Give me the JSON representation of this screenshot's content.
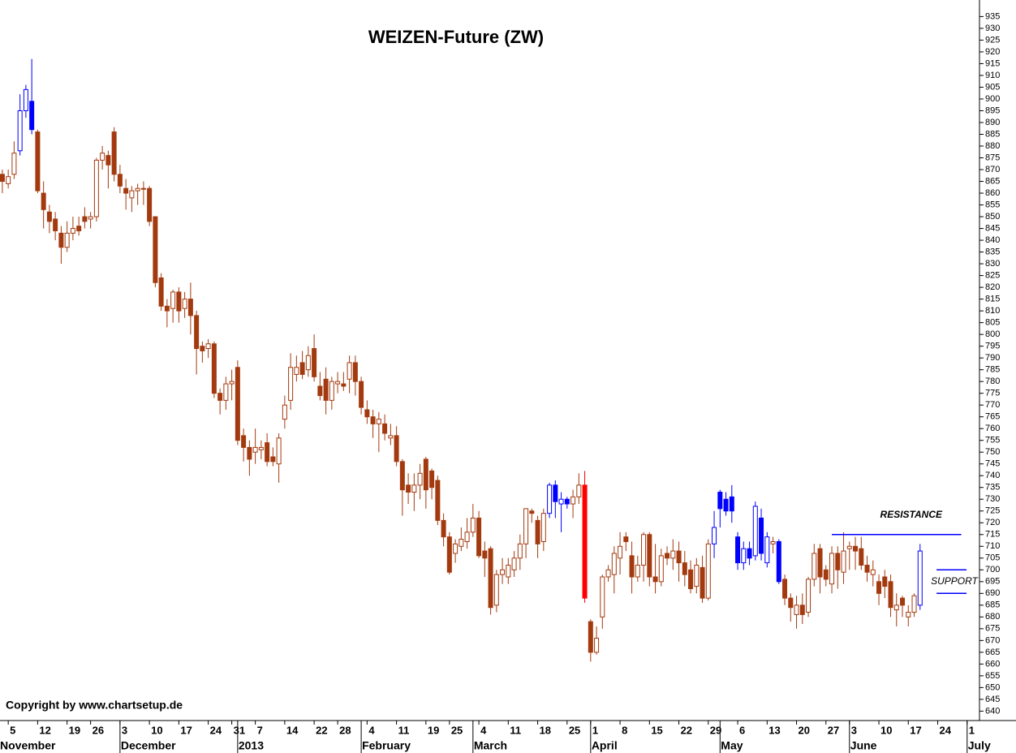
{
  "chart_data": {
    "type": "candlestick",
    "title": "WEIZEN-Future  (ZW)",
    "copyright": "Copyright by www.chartsetup.de",
    "open": [
      867,
      868,
      864,
      868,
      878,
      895,
      899,
      886,
      860,
      852,
      849,
      843,
      837,
      843,
      846,
      850,
      849,
      850,
      874,
      876,
      886,
      868,
      862,
      858,
      861,
      862,
      862,
      850,
      824,
      812,
      811,
      818,
      811,
      815,
      808,
      795,
      794,
      796,
      775,
      772,
      779,
      786,
      757,
      752,
      750,
      751,
      754,
      748,
      745,
      764,
      772,
      783,
      788,
      785,
      794,
      778,
      781,
      772,
      779,
      779,
      781,
      788,
      780,
      768,
      765,
      762,
      762,
      756,
      757,
      746,
      736,
      733,
      736,
      747,
      742,
      738,
      721,
      714,
      707,
      710,
      712,
      716,
      722,
      708,
      709,
      685,
      698,
      697,
      700,
      705,
      711,
      725,
      721,
      712,
      724,
      736,
      728,
      730,
      728,
      731,
      736,
      678,
      665,
      680,
      697,
      698,
      705,
      714,
      706,
      697,
      702,
      715,
      697,
      695,
      707,
      705,
      708,
      703,
      700,
      693,
      701,
      688,
      711,
      733,
      730,
      731,
      714,
      703,
      709,
      706,
      722,
      703,
      711,
      712,
      696,
      688,
      681,
      685,
      682,
      696,
      709,
      700,
      694,
      707,
      699,
      709,
      710,
      709,
      702,
      698,
      695,
      697,
      695,
      683,
      688,
      680,
      682,
      685
    ],
    "high": [
      869,
      870,
      870,
      882,
      902,
      906,
      917,
      887,
      865,
      855,
      852,
      846,
      848,
      850,
      850,
      854,
      852,
      875,
      880,
      878,
      888,
      872,
      866,
      863,
      864,
      865,
      863,
      850,
      826,
      815,
      819,
      820,
      818,
      822,
      810,
      797,
      798,
      797,
      777,
      782,
      785,
      789,
      760,
      755,
      760,
      755,
      758,
      752,
      758,
      774,
      792,
      791,
      793,
      795,
      800,
      784,
      786,
      782,
      784,
      784,
      791,
      791,
      782,
      772,
      768,
      767,
      766,
      762,
      761,
      747,
      741,
      741,
      745,
      748,
      743,
      740,
      724,
      716,
      713,
      718,
      722,
      728,
      725,
      712,
      710,
      700,
      705,
      705,
      708,
      715,
      726,
      726,
      723,
      726,
      737,
      738,
      733,
      731,
      734,
      741,
      742,
      679,
      676,
      698,
      702,
      710,
      716,
      716,
      712,
      706,
      716,
      716,
      711,
      709,
      710,
      713,
      712,
      708,
      704,
      705,
      706,
      713,
      725,
      734,
      733,
      736,
      716,
      712,
      712,
      729,
      726,
      716,
      714,
      713,
      698,
      690,
      689,
      690,
      697,
      711,
      711,
      702,
      710,
      710,
      716,
      712,
      714,
      714,
      706,
      704,
      698,
      700,
      698,
      690,
      689,
      685,
      690,
      711
    ],
    "low": [
      862,
      860,
      862,
      866,
      876,
      892,
      885,
      860,
      845,
      843,
      840,
      830,
      835,
      840,
      842,
      845,
      845,
      848,
      870,
      862,
      865,
      860,
      853,
      852,
      855,
      855,
      846,
      820,
      810,
      803,
      805,
      805,
      807,
      800,
      783,
      788,
      790,
      773,
      766,
      768,
      772,
      753,
      746,
      740,
      745,
      747,
      744,
      744,
      737,
      760,
      768,
      780,
      781,
      782,
      780,
      772,
      766,
      768,
      775,
      776,
      775,
      774,
      766,
      762,
      756,
      750,
      755,
      753,
      744,
      723,
      728,
      725,
      730,
      726,
      730,
      719,
      710,
      698,
      703,
      708,
      709,
      714,
      705,
      697,
      681,
      682,
      694,
      694,
      697,
      700,
      705,
      720,
      705,
      708,
      722,
      722,
      716,
      726,
      722,
      728,
      686,
      661,
      664,
      675,
      695,
      690,
      698,
      708,
      690,
      695,
      695,
      693,
      690,
      693,
      702,
      700,
      695,
      693,
      690,
      690,
      686,
      687,
      705,
      718,
      723,
      720,
      700,
      700,
      702,
      704,
      704,
      701,
      707,
      694,
      685,
      678,
      675,
      677,
      680,
      693,
      690,
      693,
      690,
      692,
      694,
      700,
      700,
      700,
      695,
      693,
      685,
      688,
      680,
      676,
      680,
      676,
      680,
      683
    ],
    "close": [
      865,
      865,
      867,
      877,
      895,
      904,
      887,
      861,
      853,
      848,
      844,
      837,
      843,
      845,
      844,
      848,
      850,
      874,
      877,
      872,
      868,
      863,
      860,
      861,
      862,
      862,
      848,
      822,
      812,
      810,
      818,
      810,
      815,
      808,
      794,
      793,
      796,
      775,
      772,
      779,
      780,
      755,
      752,
      747,
      752,
      752,
      746,
      746,
      756,
      770,
      786,
      786,
      783,
      791,
      782,
      774,
      772,
      780,
      780,
      778,
      788,
      780,
      769,
      765,
      762,
      764,
      758,
      757,
      746,
      734,
      733,
      736,
      741,
      734,
      735,
      721,
      714,
      699,
      711,
      713,
      716,
      722,
      706,
      705,
      684,
      698,
      700,
      702,
      705,
      711,
      726,
      724,
      711,
      724,
      736,
      729,
      730,
      728,
      731,
      736,
      688,
      665,
      671,
      697,
      700,
      707,
      710,
      712,
      697,
      702,
      715,
      697,
      695,
      706,
      705,
      708,
      703,
      698,
      692,
      702,
      688,
      711,
      718,
      726,
      725,
      725,
      703,
      709,
      705,
      727,
      707,
      714,
      712,
      695,
      688,
      684,
      685,
      681,
      696,
      707,
      697,
      696,
      707,
      700,
      708,
      710,
      708,
      702,
      699,
      700,
      690,
      693,
      684,
      685,
      685,
      682,
      689,
      708
    ],
    "colors": [
      "#a33a0f",
      "#a33a0f",
      "#a33a0f",
      "#a33a0f",
      "#0000ff",
      "#0000ff",
      "#0000ff",
      "#a33a0f",
      "#a33a0f",
      "#a33a0f",
      "#a33a0f",
      "#a33a0f",
      "#a33a0f",
      "#a33a0f",
      "#a33a0f",
      "#a33a0f",
      "#a33a0f",
      "#a33a0f",
      "#a33a0f",
      "#a33a0f",
      "#a33a0f",
      "#a33a0f",
      "#a33a0f",
      "#a33a0f",
      "#a33a0f",
      "#a33a0f",
      "#a33a0f",
      "#a33a0f",
      "#a33a0f",
      "#a33a0f",
      "#a33a0f",
      "#a33a0f",
      "#a33a0f",
      "#a33a0f",
      "#a33a0f",
      "#a33a0f",
      "#a33a0f",
      "#a33a0f",
      "#a33a0f",
      "#a33a0f",
      "#a33a0f",
      "#a33a0f",
      "#a33a0f",
      "#a33a0f",
      "#a33a0f",
      "#a33a0f",
      "#a33a0f",
      "#a33a0f",
      "#a33a0f",
      "#a33a0f",
      "#a33a0f",
      "#a33a0f",
      "#a33a0f",
      "#a33a0f",
      "#a33a0f",
      "#a33a0f",
      "#a33a0f",
      "#a33a0f",
      "#a33a0f",
      "#a33a0f",
      "#a33a0f",
      "#a33a0f",
      "#a33a0f",
      "#a33a0f",
      "#a33a0f",
      "#a33a0f",
      "#a33a0f",
      "#a33a0f",
      "#a33a0f",
      "#a33a0f",
      "#a33a0f",
      "#a33a0f",
      "#a33a0f",
      "#a33a0f",
      "#a33a0f",
      "#a33a0f",
      "#a33a0f",
      "#a33a0f",
      "#a33a0f",
      "#a33a0f",
      "#a33a0f",
      "#a33a0f",
      "#a33a0f",
      "#a33a0f",
      "#a33a0f",
      "#a33a0f",
      "#a33a0f",
      "#a33a0f",
      "#a33a0f",
      "#a33a0f",
      "#a33a0f",
      "#a33a0f",
      "#a33a0f",
      "#a33a0f",
      "#0000ff",
      "#0000ff",
      "#0000ff",
      "#0000ff",
      "#a33a0f",
      "#a33a0f",
      "#ff0000",
      "#a33a0f",
      "#a33a0f",
      "#a33a0f",
      "#a33a0f",
      "#a33a0f",
      "#a33a0f",
      "#a33a0f",
      "#a33a0f",
      "#a33a0f",
      "#a33a0f",
      "#a33a0f",
      "#a33a0f",
      "#a33a0f",
      "#a33a0f",
      "#a33a0f",
      "#a33a0f",
      "#a33a0f",
      "#a33a0f",
      "#a33a0f",
      "#a33a0f",
      "#a33a0f",
      "#0000ff",
      "#0000ff",
      "#0000ff",
      "#0000ff",
      "#0000ff",
      "#0000ff",
      "#0000ff",
      "#0000ff",
      "#0000ff",
      "#0000ff",
      "#a33a0f",
      "#0000ff",
      "#a33a0f",
      "#a33a0f",
      "#a33a0f",
      "#a33a0f",
      "#a33a0f",
      "#a33a0f",
      "#a33a0f",
      "#a33a0f",
      "#a33a0f",
      "#a33a0f",
      "#a33a0f",
      "#a33a0f",
      "#a33a0f",
      "#a33a0f",
      "#a33a0f",
      "#a33a0f",
      "#a33a0f",
      "#a33a0f",
      "#a33a0f",
      "#a33a0f",
      "#a33a0f",
      "#a33a0f",
      "#a33a0f",
      "#0000ff"
    ],
    "xlim": [
      0.6,
      167.1
    ],
    "ylim": [
      636,
      941
    ],
    "xticks": [
      {
        "value": 2,
        "label": "5"
      },
      {
        "value": 7,
        "label": "12"
      },
      {
        "value": 12,
        "label": "19"
      },
      {
        "value": 16,
        "label": "26"
      },
      {
        "value": 21,
        "label": "3"
      },
      {
        "value": 26,
        "label": "10"
      },
      {
        "value": 31,
        "label": "17"
      },
      {
        "value": 36,
        "label": "24"
      },
      {
        "value": 40,
        "label": "31"
      },
      {
        "value": 44,
        "label": "7"
      },
      {
        "value": 49,
        "label": "14"
      },
      {
        "value": 54,
        "label": "22"
      },
      {
        "value": 58,
        "label": "28"
      },
      {
        "value": 63,
        "label": "4"
      },
      {
        "value": 68,
        "label": "11"
      },
      {
        "value": 73,
        "label": "19"
      },
      {
        "value": 77,
        "label": "25"
      },
      {
        "value": 82,
        "label": "4"
      },
      {
        "value": 87,
        "label": "11"
      },
      {
        "value": 92,
        "label": "18"
      },
      {
        "value": 97,
        "label": "25"
      },
      {
        "value": 101,
        "label": "1"
      },
      {
        "value": 106,
        "label": "8"
      },
      {
        "value": 111,
        "label": "15"
      },
      {
        "value": 116,
        "label": "22"
      },
      {
        "value": 121,
        "label": "29"
      },
      {
        "value": 126,
        "label": "6"
      },
      {
        "value": 131,
        "label": "13"
      },
      {
        "value": 136,
        "label": "20"
      },
      {
        "value": 141,
        "label": "27"
      },
      {
        "value": 145,
        "label": "3"
      },
      {
        "value": 150,
        "label": "10"
      },
      {
        "value": 155,
        "label": "17"
      },
      {
        "value": 160,
        "label": "24"
      },
      {
        "value": 165,
        "label": "1"
      }
    ],
    "months": [
      {
        "value": 0,
        "label": "November"
      },
      {
        "value": 21,
        "label": "December"
      },
      {
        "value": 41,
        "label": "2013"
      },
      {
        "value": 62,
        "label": "February"
      },
      {
        "value": 81,
        "label": "March"
      },
      {
        "value": 101,
        "label": "April"
      },
      {
        "value": 123,
        "label": "May"
      },
      {
        "value": 145,
        "label": "June"
      },
      {
        "value": 165,
        "label": "July"
      }
    ],
    "yticks": [
      640,
      645,
      650,
      655,
      660,
      665,
      670,
      675,
      680,
      685,
      690,
      695,
      700,
      705,
      710,
      715,
      720,
      725,
      730,
      735,
      740,
      745,
      750,
      755,
      760,
      765,
      770,
      775,
      780,
      785,
      790,
      795,
      800,
      805,
      810,
      815,
      820,
      825,
      830,
      835,
      840,
      845,
      850,
      855,
      860,
      865,
      870,
      875,
      880,
      885,
      890,
      895,
      900,
      905,
      910,
      915,
      920,
      925,
      930,
      935
    ],
    "annotations": [
      {
        "text": "RESISTANCE",
        "color": "#0000ff",
        "lines": [
          {
            "value": 715,
            "x": [
              142,
              164
            ]
          }
        ]
      },
      {
        "text": "SUPPORT",
        "color": "#0000ff",
        "lines": [
          {
            "value": 700,
            "x": [
              159.8,
              164.9
            ]
          },
          {
            "value": 690,
            "x": [
              159.8,
              164.9
            ]
          }
        ]
      }
    ]
  }
}
